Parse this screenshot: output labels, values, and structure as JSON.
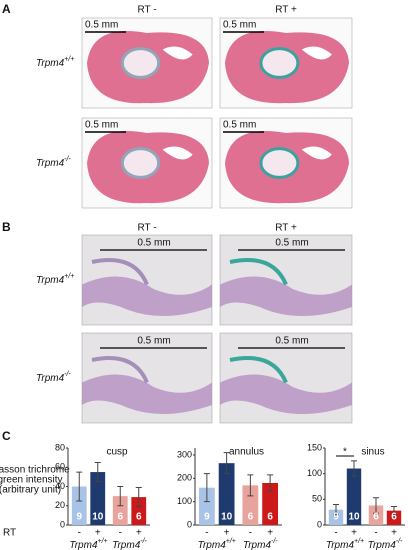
{
  "panels": [
    {
      "label": "A",
      "columns": [
        "RT -",
        "RT +"
      ],
      "rows": [
        {
          "gene": "Trpm4",
          "sup": "+/+"
        },
        {
          "gene": "Trpm4",
          "sup": "-/-"
        }
      ],
      "scale_bar": "0.5 mm"
    },
    {
      "label": "B",
      "columns": [
        "RT -",
        "RT +"
      ],
      "rows": [
        {
          "gene": "Trpm4",
          "sup": "+/+"
        },
        {
          "gene": "Trpm4",
          "sup": "-/-"
        }
      ],
      "scale_bar": "0.5 mm"
    }
  ],
  "panel_c": {
    "label": "C",
    "y_label": [
      "Masson trichrome",
      "green intensity",
      "(arbitrary unit)"
    ],
    "rt_label": "RT",
    "groups": [
      {
        "gene": "Trpm4",
        "sup": "+/+"
      },
      {
        "gene": "Trpm4",
        "sup": "-/-"
      }
    ]
  },
  "chart_data": [
    {
      "type": "bar",
      "title": "cusp",
      "categories": [
        "-",
        "+",
        "-",
        "+"
      ],
      "values": [
        40,
        55,
        30,
        29
      ],
      "errors": [
        15,
        10,
        10,
        10
      ],
      "n_labels": [
        "9",
        "10",
        "6",
        "6"
      ],
      "colors": [
        "#a9c3e6",
        "#1f3a6e",
        "#e8a39c",
        "#cc1a1a"
      ],
      "ylim": [
        0,
        80
      ],
      "yticks": [
        0,
        20,
        40,
        60,
        80
      ]
    },
    {
      "type": "bar",
      "title": "annulus",
      "categories": [
        "-",
        "+",
        "-",
        "+"
      ],
      "values": [
        160,
        265,
        170,
        180
      ],
      "errors": [
        60,
        45,
        45,
        35
      ],
      "n_labels": [
        "9",
        "10",
        "6",
        "6"
      ],
      "colors": [
        "#a9c3e6",
        "#1f3a6e",
        "#e8a39c",
        "#cc1a1a"
      ],
      "ylim": [
        0,
        330
      ],
      "yticks": [
        0,
        100,
        200,
        300
      ]
    },
    {
      "type": "bar",
      "title": "sinus",
      "categories": [
        "-",
        "+",
        "-",
        "+"
      ],
      "values": [
        30,
        110,
        38,
        28
      ],
      "errors": [
        10,
        15,
        15,
        8
      ],
      "n_labels": [
        "9",
        "10",
        "6",
        "6"
      ],
      "colors": [
        "#a9c3e6",
        "#1f3a6e",
        "#e8a39c",
        "#cc1a1a"
      ],
      "ylim": [
        0,
        150
      ],
      "yticks": [
        0,
        50,
        100,
        150
      ],
      "significance": "*"
    }
  ]
}
